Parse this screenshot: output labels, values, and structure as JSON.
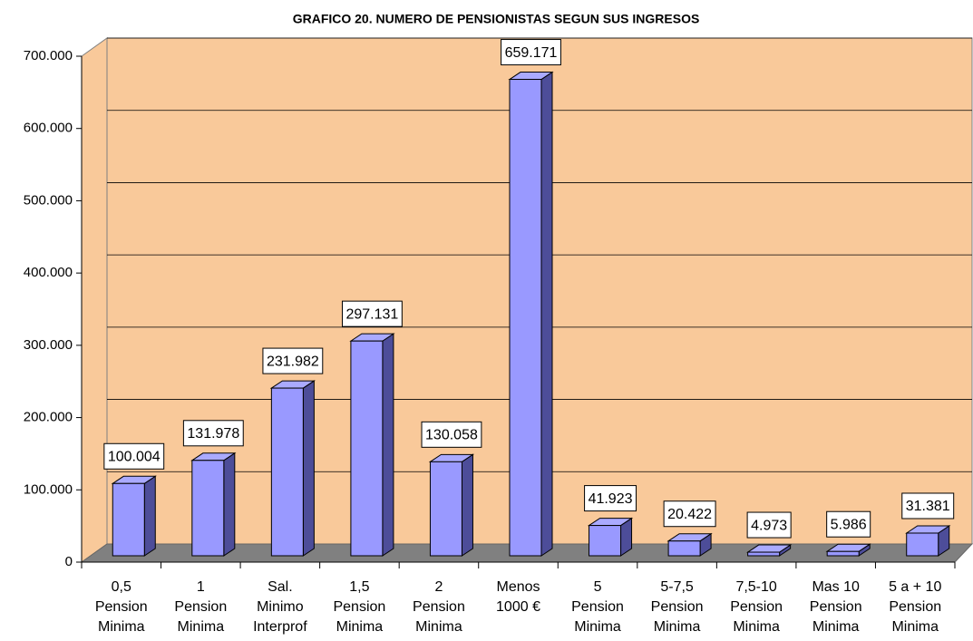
{
  "chart_data": {
    "type": "bar3d",
    "title": "GRAFICO 20. NUMERO DE PENSIONISTAS SEGUN SUS INGRESOS",
    "categories": [
      [
        "0,5",
        "Pension",
        "Minima"
      ],
      [
        "1",
        "Pension",
        "Minima"
      ],
      [
        "Sal.",
        "Minimo",
        "Interprof"
      ],
      [
        "1,5",
        "Pension",
        "Minima"
      ],
      [
        "2",
        "Pension",
        "Minima"
      ],
      [
        "Menos",
        "1000 €"
      ],
      [
        "5",
        "Pension",
        "Minima"
      ],
      [
        "5-7,5",
        "Pension",
        "Minima"
      ],
      [
        "7,5-10",
        "Pension",
        "Minima"
      ],
      [
        "Mas 10",
        "Pension",
        "Minima"
      ],
      [
        "5 a + 10",
        "Pension",
        "Minima"
      ]
    ],
    "values": [
      100004,
      131978,
      231982,
      297131,
      130058,
      659171,
      41923,
      20422,
      4973,
      5986,
      31381
    ],
    "value_labels": [
      "100.004",
      "131.978",
      "231.982",
      "297.131",
      "130.058",
      "659.171",
      "41.923",
      "20.422",
      "4.973",
      "5.986",
      "31.381"
    ],
    "color": "#9999ff",
    "ylim": [
      0,
      700000
    ],
    "yticks": [
      0,
      {
        "value": 100000,
        "label": "100.000"
      },
      {
        "value": 200000,
        "label": "200.000"
      },
      {
        "value": 300000,
        "label": "300.000"
      },
      {
        "value": 400000,
        "label": "400.000"
      },
      {
        "value": 500000,
        "label": "500.000"
      },
      {
        "value": 600000,
        "label": "600.000"
      },
      {
        "value": 700000,
        "label": "700.000"
      }
    ],
    "grid": true
  }
}
